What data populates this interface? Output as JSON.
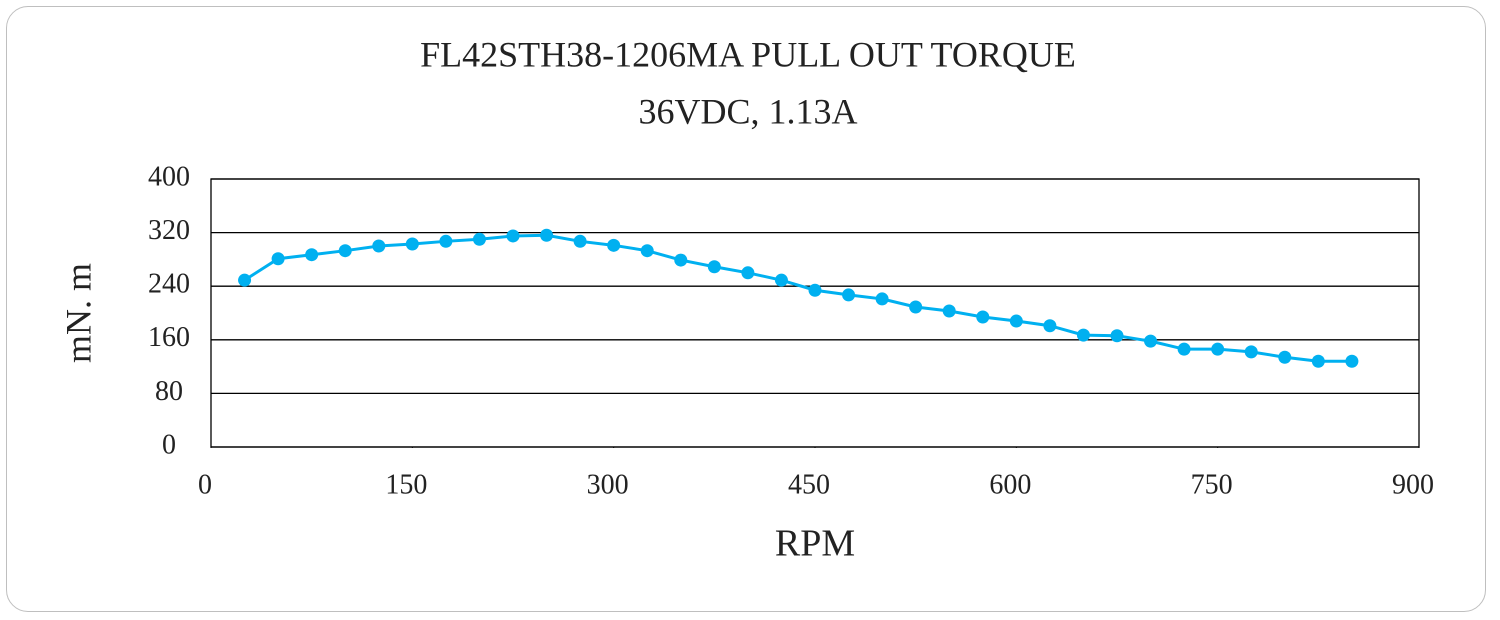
{
  "chart_data": {
    "type": "line",
    "title": "FL42STH38-1206MA PULL OUT TORQUE",
    "subtitle": "36VDC, 1.13A",
    "x_label": "RPM",
    "y_label": "mN. m",
    "x": [
      25,
      50,
      75,
      100,
      125,
      150,
      175,
      200,
      225,
      250,
      275,
      300,
      325,
      350,
      375,
      400,
      425,
      450,
      475,
      500,
      525,
      550,
      575,
      600,
      625,
      650,
      675,
      700,
      725,
      750,
      775,
      800,
      825,
      850
    ],
    "series": [
      {
        "name": "Pull out torque",
        "color": "#00b0f0",
        "values": [
          249,
          281,
          287,
          293,
          300,
          303,
          307,
          310,
          315,
          316,
          307,
          301,
          293,
          279,
          269,
          260,
          249,
          234,
          227,
          221,
          209,
          203,
          194,
          188,
          181,
          167,
          166,
          158,
          146,
          146,
          142,
          134,
          128,
          128
        ]
      }
    ],
    "xlim": [
      0,
      900
    ],
    "xticks": [
      0,
      150,
      300,
      450,
      600,
      750,
      900
    ],
    "ylim": [
      0,
      400
    ],
    "yticks": [
      0,
      80,
      160,
      240,
      320,
      400
    ],
    "grid": true
  }
}
